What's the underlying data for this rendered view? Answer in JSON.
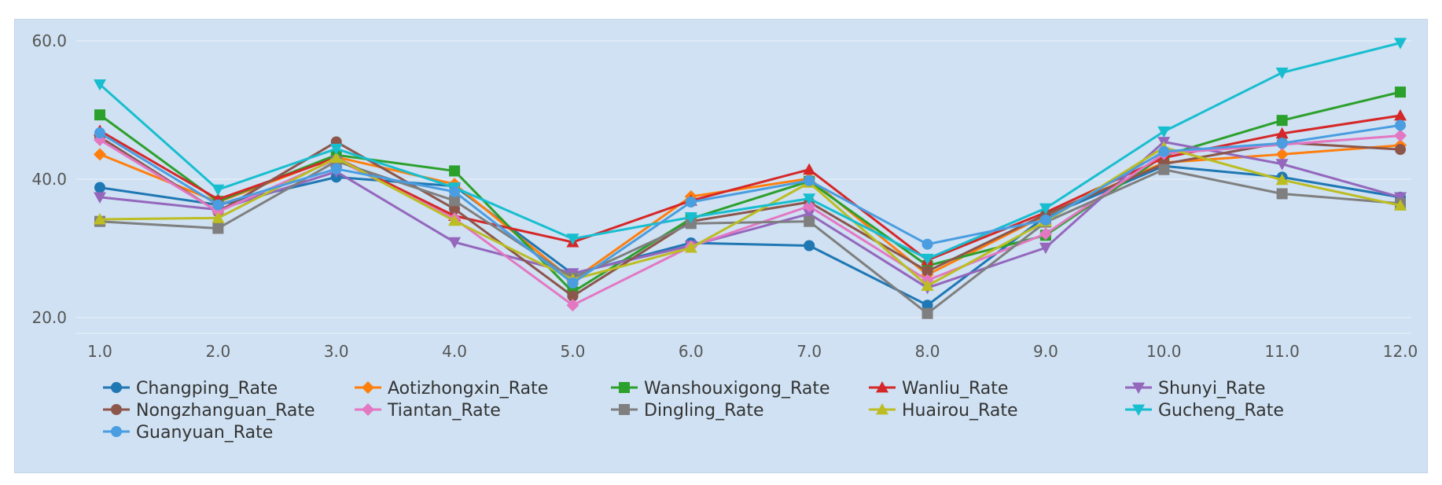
{
  "chart_data": {
    "type": "line",
    "title": "",
    "xlabel": "",
    "ylabel": "",
    "x": [
      1,
      2,
      3,
      4,
      5,
      6,
      7,
      8,
      9,
      10,
      11,
      12
    ],
    "x_tick_labels": [
      "1.0",
      "2.0",
      "3.0",
      "4.0",
      "5.0",
      "6.0",
      "7.0",
      "8.0",
      "9.0",
      "10.0",
      "11.0",
      "12.0"
    ],
    "y_tick_labels": [
      "20.0",
      "40.0",
      "60.0"
    ],
    "y_ticks": [
      20,
      40,
      60
    ],
    "xlim": [
      1,
      12
    ],
    "ylim": [
      18.3,
      61.7
    ],
    "grid": true,
    "legend_position": "bottom",
    "series": [
      {
        "name": "Changping_Rate",
        "color": "#1f77b4",
        "marker": "circle",
        "values": [
          38.8,
          36.3,
          40.3,
          39.0,
          26.3,
          30.8,
          30.4,
          21.8,
          34.6,
          41.9,
          40.3,
          37.4
        ]
      },
      {
        "name": "Aotizhongxin_Rate",
        "color": "#ff7f0e",
        "marker": "diamond",
        "values": [
          43.6,
          36.7,
          43.2,
          39.3,
          25.4,
          37.5,
          40.1,
          26.2,
          34.8,
          42.4,
          43.6,
          44.9
        ]
      },
      {
        "name": "Wanshouxigong_Rate",
        "color": "#2ca02c",
        "marker": "square",
        "values": [
          49.3,
          36.8,
          43.5,
          41.2,
          23.7,
          34.3,
          39.7,
          27.5,
          31.9,
          43.4,
          48.5,
          52.6
        ]
      },
      {
        "name": "Wanliu_Rate",
        "color": "#d62728",
        "marker": "triangle-up",
        "values": [
          47.0,
          37.1,
          43.1,
          34.7,
          30.9,
          36.9,
          41.4,
          28.3,
          35.2,
          43.1,
          46.6,
          49.2
        ]
      },
      {
        "name": "Shunyi_Rate",
        "color": "#9467bd",
        "marker": "triangle-down",
        "values": [
          37.4,
          35.6,
          41.1,
          30.9,
          26.4,
          30.4,
          35.0,
          24.3,
          30.1,
          45.4,
          42.2,
          37.4
        ]
      },
      {
        "name": "Nongzhanguan_Rate",
        "color": "#8c564b",
        "marker": "circle",
        "values": [
          46.1,
          35.3,
          45.4,
          35.7,
          23.1,
          33.9,
          36.7,
          26.7,
          34.9,
          42.2,
          45.3,
          44.3
        ]
      },
      {
        "name": "Tiantan_Rate",
        "color": "#e377c2",
        "marker": "diamond",
        "values": [
          45.7,
          35.3,
          42.9,
          34.3,
          21.8,
          30.3,
          36.1,
          25.4,
          32.1,
          43.7,
          45.0,
          46.3
        ]
      },
      {
        "name": "Dingling_Rate",
        "color": "#7f7f7f",
        "marker": "square",
        "values": [
          33.9,
          32.9,
          42.6,
          36.9,
          25.7,
          33.6,
          33.9,
          20.6,
          33.8,
          41.4,
          37.9,
          36.5
        ]
      },
      {
        "name": "Huairou_Rate",
        "color": "#bcbd22",
        "marker": "triangle-up",
        "values": [
          34.2,
          34.4,
          43.1,
          34.0,
          25.5,
          30.1,
          39.5,
          24.6,
          33.9,
          44.6,
          39.9,
          36.2
        ]
      },
      {
        "name": "Gucheng_Rate",
        "color": "#17becf",
        "marker": "triangle-down",
        "values": [
          53.7,
          38.5,
          44.4,
          38.8,
          31.4,
          34.5,
          37.2,
          28.5,
          35.8,
          46.9,
          55.4,
          59.7
        ]
      },
      {
        "name": "Guanyuan_Rate",
        "color": "#4a9de0",
        "marker": "circle",
        "values": [
          46.7,
          36.3,
          41.5,
          38.2,
          25.0,
          36.7,
          39.8,
          30.6,
          34.1,
          44.0,
          45.2,
          47.8
        ]
      }
    ]
  }
}
